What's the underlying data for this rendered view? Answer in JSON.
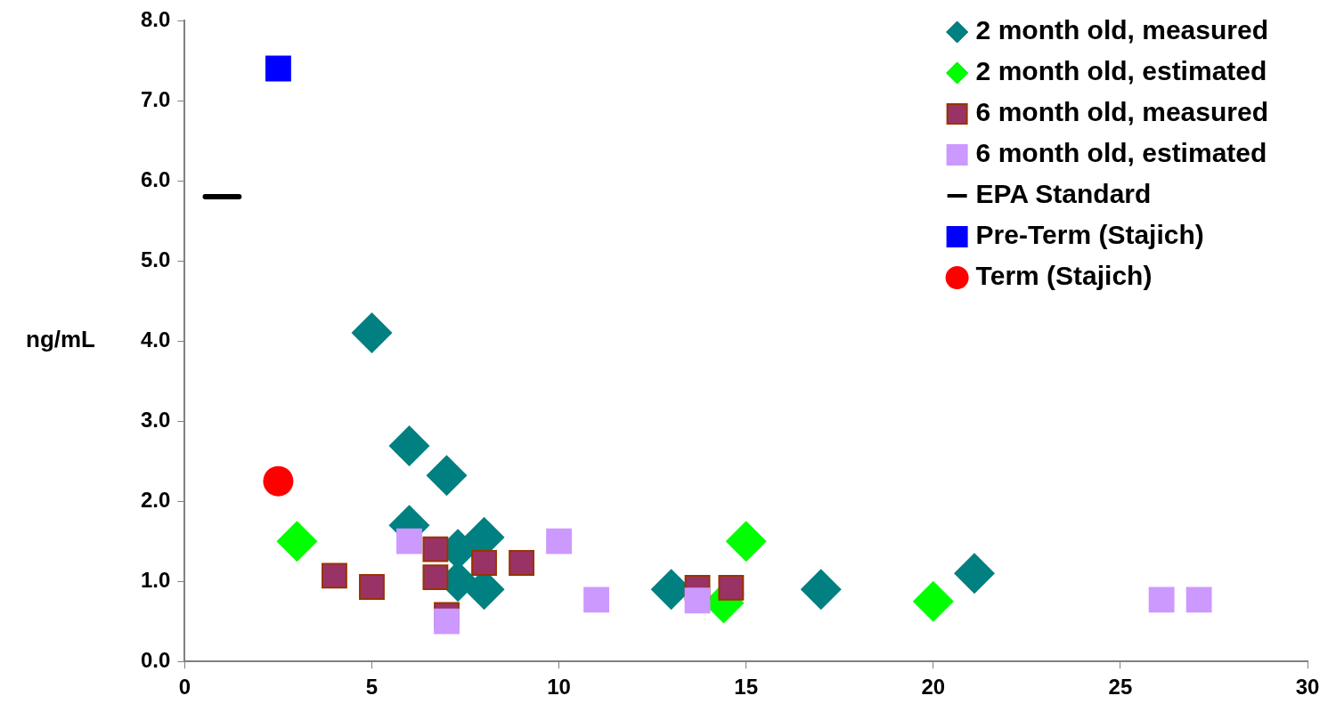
{
  "chart_data": {
    "type": "scatter",
    "ylabel": "ng/mL",
    "xlim": [
      0,
      30
    ],
    "xticks": [
      0,
      5,
      10,
      15,
      20,
      25,
      30
    ],
    "ylim": [
      0,
      8
    ],
    "yticks": [
      {
        "value": 0,
        "label": "0.0"
      },
      {
        "value": 1,
        "label": "1.0"
      },
      {
        "value": 2,
        "label": "2.0"
      },
      {
        "value": 3,
        "label": "3.0"
      },
      {
        "value": 4,
        "label": "4.0"
      },
      {
        "value": 5,
        "label": "5.0"
      },
      {
        "value": 6,
        "label": "6.0"
      },
      {
        "value": 7,
        "label": "7.0"
      },
      {
        "value": 8,
        "label": "8.0"
      }
    ],
    "grid": false,
    "legend": "top right",
    "series": [
      {
        "name": "2 month old, measured",
        "color": "#008080",
        "marker": "diamond",
        "x": [
          5,
          6,
          7,
          6,
          7.3,
          7.3,
          8,
          8,
          13,
          17,
          21.1
        ],
        "values": [
          4.1,
          2.69,
          2.32,
          1.7,
          1.4,
          1.0,
          1.55,
          0.9,
          0.9,
          0.9,
          1.1
        ]
      },
      {
        "name": "2 month old, estimated",
        "color": "#00ff00",
        "marker": "diamond",
        "x": [
          3,
          14.4,
          15,
          20
        ],
        "values": [
          1.5,
          0.73,
          1.5,
          0.75
        ]
      },
      {
        "name": "6 month old, measured",
        "color": "#993366",
        "marker": "square",
        "x": [
          4,
          5,
          6.7,
          6.7,
          7,
          8,
          9,
          13.7,
          14.6
        ],
        "values": [
          1.07,
          0.93,
          1.4,
          1.05,
          0.58,
          1.23,
          1.23,
          0.92,
          0.92
        ]
      },
      {
        "name": "6 month old, estimated",
        "color": "#cc99ff",
        "marker": "square",
        "x": [
          6,
          7,
          10,
          11,
          13.7,
          26.1,
          27.1
        ],
        "values": [
          1.5,
          0.5,
          1.5,
          0.77,
          0.76,
          0.77,
          0.77
        ]
      },
      {
        "name": "EPA Standard",
        "color": "#000000",
        "type": "line",
        "marker": "none",
        "x": [
          0.55,
          1.45
        ],
        "values": [
          5.8,
          5.8
        ]
      },
      {
        "name": "Pre-Term (Stajich)",
        "color": "#0000ff",
        "marker": "square",
        "x": [
          2.5
        ],
        "values": [
          7.4
        ]
      },
      {
        "name": "Term (Stajich)",
        "color": "#ff0000",
        "marker": "circle",
        "x": [
          2.5
        ],
        "values": [
          2.25
        ]
      }
    ]
  }
}
